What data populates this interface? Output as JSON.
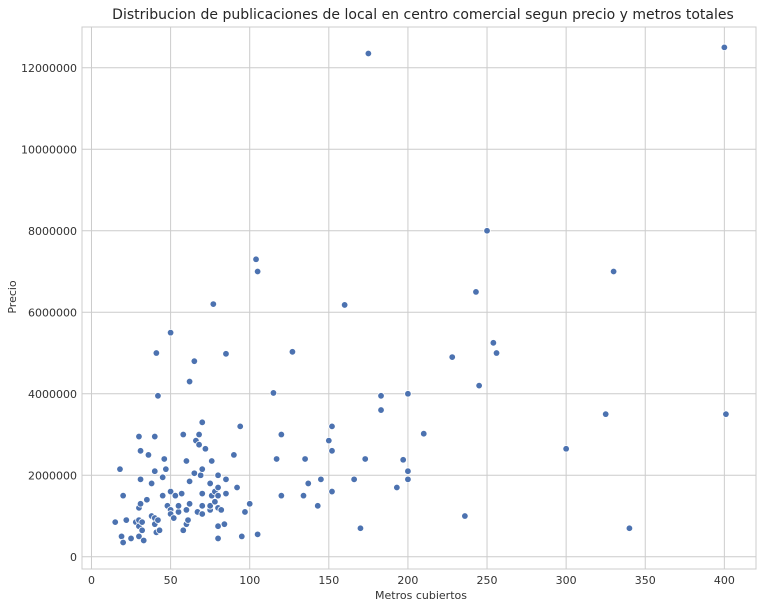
{
  "chart_data": {
    "type": "scatter",
    "title": "Distribucion de publicaciones de local en centro comercial segun precio y metros totales",
    "xlabel": "Metros cubiertos",
    "ylabel": "Precio",
    "xlim": [
      -6,
      420
    ],
    "ylim": [
      -300000,
      13000000
    ],
    "xticks": [
      0,
      50,
      100,
      150,
      200,
      250,
      300,
      350,
      400
    ],
    "yticks": [
      0,
      2000000,
      4000000,
      6000000,
      8000000,
      10000000,
      12000000
    ],
    "xtick_labels": [
      "0",
      "50",
      "100",
      "150",
      "200",
      "250",
      "300",
      "350",
      "400"
    ],
    "ytick_labels": [
      "0",
      "2000000",
      "4000000",
      "6000000",
      "8000000",
      "10000000",
      "12000000"
    ],
    "grid": true,
    "marker_color": "#4c72b0",
    "x": [
      15,
      18,
      19,
      20,
      20,
      22,
      25,
      28,
      30,
      30,
      30,
      30,
      30,
      31,
      31,
      31,
      32,
      32,
      33,
      35,
      36,
      38,
      38,
      40,
      40,
      40,
      40,
      41,
      41,
      42,
      42,
      43,
      45,
      45,
      46,
      47,
      48,
      50,
      50,
      50,
      50,
      52,
      53,
      55,
      55,
      57,
      58,
      58,
      60,
      60,
      60,
      61,
      62,
      62,
      62,
      65,
      65,
      66,
      67,
      68,
      68,
      69,
      70,
      70,
      70,
      70,
      70,
      72,
      75,
      75,
      75,
      76,
      76,
      77,
      78,
      78,
      80,
      80,
      80,
      80,
      80,
      80,
      82,
      84,
      85,
      85,
      85,
      90,
      92,
      94,
      95,
      97,
      100,
      104,
      105,
      105,
      115,
      117,
      120,
      120,
      127,
      134,
      135,
      137,
      143,
      145,
      150,
      152,
      152,
      152,
      160,
      166,
      170,
      173,
      175,
      183,
      183,
      193,
      197,
      200,
      200,
      200,
      210,
      228,
      236,
      243,
      245,
      250,
      254,
      256,
      300,
      325,
      330,
      340,
      400,
      401
    ],
    "y": [
      850000,
      2150000,
      500000,
      1500000,
      350000,
      900000,
      450000,
      850000,
      500000,
      750000,
      900000,
      1200000,
      2950000,
      2600000,
      1900000,
      1300000,
      850000,
      650000,
      400000,
      1400000,
      2500000,
      1800000,
      1000000,
      950000,
      2100000,
      2950000,
      800000,
      600000,
      5000000,
      3950000,
      900000,
      650000,
      1950000,
      1500000,
      2400000,
      2150000,
      1250000,
      1150000,
      1600000,
      1050000,
      5500000,
      950000,
      1500000,
      1100000,
      1250000,
      1550000,
      650000,
      3000000,
      2350000,
      800000,
      1150000,
      900000,
      1300000,
      1850000,
      4300000,
      4800000,
      2050000,
      2850000,
      1100000,
      2750000,
      3000000,
      2000000,
      1250000,
      1050000,
      1550000,
      2150000,
      3300000,
      2650000,
      1150000,
      1800000,
      1250000,
      1500000,
      2350000,
      6200000,
      1600000,
      1350000,
      1700000,
      1500000,
      1200000,
      750000,
      450000,
      2000000,
      1150000,
      800000,
      1550000,
      4980000,
      1900000,
      2500000,
      1700000,
      3200000,
      500000,
      1100000,
      1300000,
      7300000,
      7000000,
      550000,
      4020000,
      2400000,
      3000000,
      1500000,
      5030000,
      1500000,
      2400000,
      1800000,
      1250000,
      1900000,
      2850000,
      3200000,
      2600000,
      1600000,
      6180000,
      1900000,
      700000,
      2400000,
      12350000,
      3950000,
      3600000,
      1700000,
      2380000,
      4000000,
      2100000,
      1900000,
      3020000,
      4900000,
      1000000,
      6500000,
      4200000,
      8000000,
      5250000,
      5000000,
      2650000,
      3500000,
      7000000,
      700000,
      12500000,
      3500000
    ]
  }
}
